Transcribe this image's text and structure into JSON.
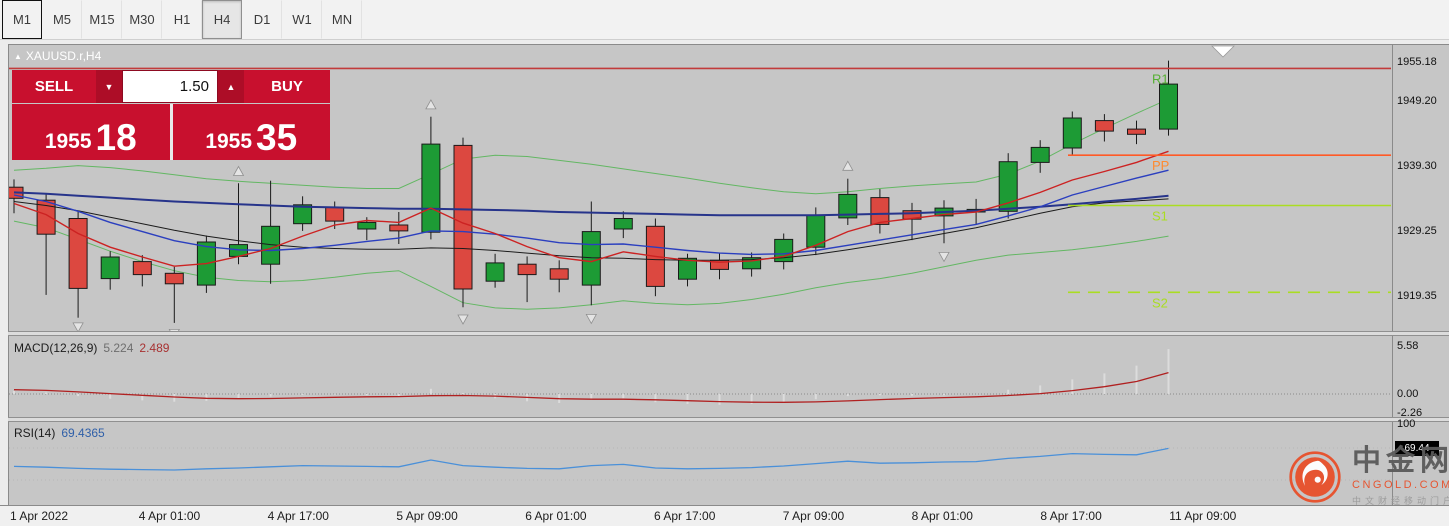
{
  "colors": {
    "up": "#1d9b35",
    "down": "#dc4840",
    "ma_fast": "#cc2222",
    "ma_mid": "#2b3fbf",
    "ma_slow": "#27348b",
    "ma_black": "#1c1c1c",
    "bb": "#63b763",
    "macd_hist": "#dcdcdc",
    "macd_signal": "#b02020",
    "rsi": "#4a90d9",
    "accent_red": "#c8102e"
  },
  "toolbar": {
    "timeframes": [
      {
        "label": "M1",
        "state": "focused"
      },
      {
        "label": "M5",
        "state": ""
      },
      {
        "label": "M15",
        "state": ""
      },
      {
        "label": "M30",
        "state": ""
      },
      {
        "label": "H1",
        "state": ""
      },
      {
        "label": "H4",
        "state": "selected"
      },
      {
        "label": "D1",
        "state": ""
      },
      {
        "label": "W1",
        "state": ""
      },
      {
        "label": "MN",
        "state": ""
      }
    ]
  },
  "chart": {
    "collapse_icon": "▲",
    "title": "XAUUSD.r,H4",
    "one_click": {
      "sell_label": "SELL",
      "buy_label": "BUY",
      "volume": "1.50",
      "down_icon": "▼",
      "up_icon": "▲",
      "sell_price": "1955",
      "sell_pips": "18",
      "buy_price": "1955",
      "buy_pips": "35"
    },
    "price_scale": [
      1955.18,
      1949.2,
      1939.3,
      1929.25,
      1919.35
    ],
    "time_axis": [
      "1 Apr 2022",
      "4 Apr 01:00",
      "4 Apr 17:00",
      "5 Apr 09:00",
      "6 Apr 01:00",
      "6 Apr 17:00",
      "7 Apr 09:00",
      "8 Apr 01:00",
      "8 Apr 17:00",
      "11 Apr 09:00"
    ]
  },
  "macd": {
    "name": "MACD(12,26,9)",
    "value_main": "5.224",
    "value_signal": "2.489",
    "scale": [
      5.58,
      0.0,
      -2.26
    ]
  },
  "rsi": {
    "name": "RSI(14)",
    "value": "69.4365",
    "scale_top": "100",
    "badge": "69.44"
  },
  "watermark": {
    "name": "中金网",
    "domain": "CNGOLD.COM.CN",
    "slogan": "中文财经移动门户"
  },
  "chart_data": {
    "type": "candlestick",
    "symbol": "XAUUSD.r",
    "timeframe": "H4",
    "price_axis_range": [
      1912.5,
      1957.9
    ],
    "candles": [
      [
        1936.0,
        1937.2,
        1932.0,
        1934.3
      ],
      [
        1934.0,
        1935.0,
        1919.5,
        1928.8
      ],
      [
        1931.2,
        1932.3,
        1916.0,
        1920.5
      ],
      [
        1922.0,
        1926.2,
        1920.3,
        1925.3
      ],
      [
        1924.6,
        1925.6,
        1920.8,
        1922.6
      ],
      [
        1922.8,
        1923.8,
        1915.2,
        1921.2
      ],
      [
        1921.0,
        1928.6,
        1919.8,
        1927.6
      ],
      [
        1925.4,
        1936.6,
        1924.2,
        1927.2
      ],
      [
        1924.2,
        1937.0,
        1921.2,
        1930.0
      ],
      [
        1930.4,
        1934.6,
        1929.3,
        1933.3
      ],
      [
        1932.9,
        1933.8,
        1929.6,
        1930.8
      ],
      [
        1929.6,
        1931.4,
        1927.9,
        1930.6
      ],
      [
        1930.2,
        1932.2,
        1927.3,
        1929.3
      ],
      [
        1929.1,
        1946.8,
        1928.0,
        1942.6
      ],
      [
        1942.4,
        1943.6,
        1917.6,
        1920.4
      ],
      [
        1921.6,
        1925.8,
        1920.6,
        1924.4
      ],
      [
        1924.2,
        1925.4,
        1918.4,
        1922.6
      ],
      [
        1923.5,
        1924.8,
        1919.9,
        1921.9
      ],
      [
        1921.0,
        1933.8,
        1917.9,
        1929.2
      ],
      [
        1929.6,
        1932.3,
        1928.2,
        1931.2
      ],
      [
        1930.0,
        1931.2,
        1919.3,
        1920.8
      ],
      [
        1921.9,
        1925.8,
        1920.8,
        1925.1
      ],
      [
        1924.8,
        1925.9,
        1921.9,
        1923.4
      ],
      [
        1923.5,
        1926.0,
        1922.3,
        1925.2
      ],
      [
        1924.6,
        1928.9,
        1923.4,
        1928.0
      ],
      [
        1926.8,
        1932.9,
        1925.6,
        1931.7
      ],
      [
        1931.3,
        1937.3,
        1930.2,
        1934.9
      ],
      [
        1934.4,
        1935.7,
        1928.9,
        1930.3
      ],
      [
        1932.4,
        1933.6,
        1927.9,
        1931.1
      ],
      [
        1931.6,
        1934.0,
        1927.4,
        1932.8
      ],
      [
        1932.2,
        1934.2,
        1930.3,
        1932.6
      ],
      [
        1932.3,
        1941.2,
        1931.2,
        1939.9
      ],
      [
        1939.8,
        1943.2,
        1938.2,
        1942.1
      ],
      [
        1942.0,
        1947.6,
        1941.0,
        1946.6
      ],
      [
        1946.2,
        1947.2,
        1943.0,
        1944.6
      ],
      [
        1944.9,
        1946.2,
        1942.6,
        1944.1
      ],
      [
        1944.9,
        1955.4,
        1943.9,
        1951.8
      ]
    ],
    "overlays": {
      "bb_upper": [
        1938.6,
        1938.9,
        1939.3,
        1939.0,
        1938.5,
        1937.9,
        1937.3,
        1936.9,
        1936.6,
        1936.3,
        1936.0,
        1935.8,
        1935.8,
        1938.0,
        1940.3,
        1940.9,
        1940.7,
        1940.1,
        1939.5,
        1938.8,
        1938.1,
        1937.4,
        1936.6,
        1935.9,
        1935.3,
        1935.0,
        1935.3,
        1935.8,
        1936.2,
        1936.5,
        1936.8,
        1938.0,
        1940.0,
        1942.6,
        1945.0,
        1947.3,
        1949.5
      ],
      "bb_lower": [
        1930.8,
        1929.8,
        1928.0,
        1926.2,
        1924.6,
        1923.2,
        1922.2,
        1921.7,
        1921.5,
        1921.7,
        1922.2,
        1922.8,
        1923.2,
        1920.8,
        1918.3,
        1917.5,
        1917.3,
        1917.5,
        1918.0,
        1918.6,
        1918.2,
        1918.0,
        1918.2,
        1918.8,
        1919.6,
        1920.6,
        1921.4,
        1922.0,
        1922.8,
        1923.8,
        1924.8,
        1925.6,
        1926.0,
        1926.4,
        1927.0,
        1927.7,
        1928.5
      ],
      "ma_fast_red": [
        1933.5,
        1931.8,
        1928.9,
        1926.8,
        1925.3,
        1923.9,
        1924.3,
        1925.4,
        1926.6,
        1928.5,
        1930.2,
        1930.9,
        1930.6,
        1932.8,
        1930.5,
        1928.9,
        1926.9,
        1925.2,
        1924.6,
        1926.1,
        1925.4,
        1924.8,
        1924.5,
        1924.7,
        1925.4,
        1927.1,
        1929.2,
        1930.6,
        1931.2,
        1931.8,
        1932.2,
        1933.6,
        1935.2,
        1937.1,
        1938.4,
        1939.8,
        1941.5
      ],
      "ma_mid_blue": [
        1934.8,
        1933.8,
        1932.3,
        1930.6,
        1929.2,
        1927.8,
        1926.9,
        1926.4,
        1926.3,
        1926.6,
        1927.1,
        1927.7,
        1928.2,
        1929.3,
        1929.2,
        1928.8,
        1928.2,
        1927.5,
        1927.2,
        1927.3,
        1926.8,
        1926.3,
        1925.9,
        1925.7,
        1925.8,
        1926.3,
        1927.1,
        1927.9,
        1928.7,
        1929.5,
        1930.3,
        1931.6,
        1933.0,
        1934.8,
        1936.1,
        1937.4,
        1938.6
      ],
      "ma_slow_navy": [
        1935.2,
        1935.0,
        1934.7,
        1934.4,
        1934.1,
        1933.8,
        1933.6,
        1933.4,
        1933.2,
        1933.0,
        1932.9,
        1932.8,
        1932.7,
        1932.7,
        1932.6,
        1932.5,
        1932.4,
        1932.2,
        1932.1,
        1932.0,
        1931.9,
        1931.8,
        1931.7,
        1931.7,
        1931.7,
        1931.7,
        1931.8,
        1931.9,
        1932.0,
        1932.2,
        1932.4,
        1932.7,
        1933.0,
        1933.4,
        1933.8,
        1934.2,
        1934.7
      ],
      "ma_black": [
        1933.8,
        1933.2,
        1932.4,
        1931.4,
        1930.4,
        1929.4,
        1928.5,
        1927.8,
        1927.2,
        1926.8,
        1926.6,
        1926.5,
        1926.5,
        1926.7,
        1926.6,
        1926.3,
        1925.9,
        1925.5,
        1925.2,
        1925.1,
        1924.9,
        1924.8,
        1924.8,
        1924.9,
        1925.2,
        1925.7,
        1926.4,
        1927.2,
        1928.0,
        1928.9,
        1929.8,
        1930.9,
        1932.0,
        1933.0,
        1933.6,
        1933.9,
        1934.2
      ]
    },
    "pivots": [
      {
        "label": "R1",
        "price": 1954.2,
        "line_color": "#c23b3b",
        "label_color": "#55b033",
        "dash": "",
        "full_width": true
      },
      {
        "label": "PP",
        "price": 1940.9,
        "line_color": "#ff5a26",
        "label_color": "#ff8a30",
        "dash": "",
        "full_width": false
      },
      {
        "label": "S1",
        "price": 1933.2,
        "line_color": "#aadd22",
        "label_color": "#aadd22",
        "dash": "",
        "full_width": false
      },
      {
        "label": "S2",
        "price": 1919.9,
        "line_color": "#aadd22",
        "label_color": "#aadd22",
        "dash": "12,8",
        "full_width": false
      }
    ],
    "arrows": [
      {
        "index": 2,
        "dir": "down",
        "price": 1914.6
      },
      {
        "index": 5,
        "dir": "down",
        "price": 1913.6
      },
      {
        "index": 7,
        "dir": "up",
        "price": 1938.4
      },
      {
        "index": 13,
        "dir": "up",
        "price": 1948.6
      },
      {
        "index": 14,
        "dir": "down",
        "price": 1915.8
      },
      {
        "index": 18,
        "dir": "down",
        "price": 1915.9
      },
      {
        "index": 26,
        "dir": "up",
        "price": 1939.2
      },
      {
        "index": 29,
        "dir": "down",
        "price": 1925.4
      }
    ],
    "macd": {
      "histogram": [
        0.35,
        0.18,
        -0.25,
        -0.55,
        -0.75,
        -0.9,
        -0.8,
        -0.55,
        -0.3,
        -0.1,
        -0.05,
        -0.15,
        -0.3,
        0.6,
        0.1,
        -0.5,
        -0.85,
        -1.05,
        -0.7,
        -0.5,
        -0.95,
        -1.15,
        -1.25,
        -1.15,
        -0.95,
        -0.6,
        -0.25,
        -0.15,
        -0.2,
        -0.15,
        0.0,
        0.5,
        1.0,
        1.7,
        2.4,
        3.3,
        5.224
      ],
      "signal": [
        0.5,
        0.42,
        0.25,
        0.05,
        -0.15,
        -0.35,
        -0.5,
        -0.55,
        -0.52,
        -0.45,
        -0.38,
        -0.33,
        -0.3,
        -0.2,
        -0.18,
        -0.25,
        -0.4,
        -0.55,
        -0.6,
        -0.6,
        -0.68,
        -0.78,
        -0.88,
        -0.95,
        -0.97,
        -0.92,
        -0.8,
        -0.65,
        -0.52,
        -0.42,
        -0.32,
        -0.18,
        0.05,
        0.4,
        0.85,
        1.45,
        2.489
      ]
    },
    "rsi": [
      47,
      46,
      44.5,
      43.5,
      43,
      42.5,
      44,
      45,
      46.5,
      48,
      47.5,
      47,
      46.5,
      55,
      48,
      46,
      44.5,
      44,
      48,
      49.5,
      45,
      44,
      44.5,
      45.5,
      47.5,
      50.5,
      53.5,
      51,
      51.5,
      52.5,
      53,
      57,
      59.5,
      63,
      62,
      61.5,
      69.44
    ]
  }
}
